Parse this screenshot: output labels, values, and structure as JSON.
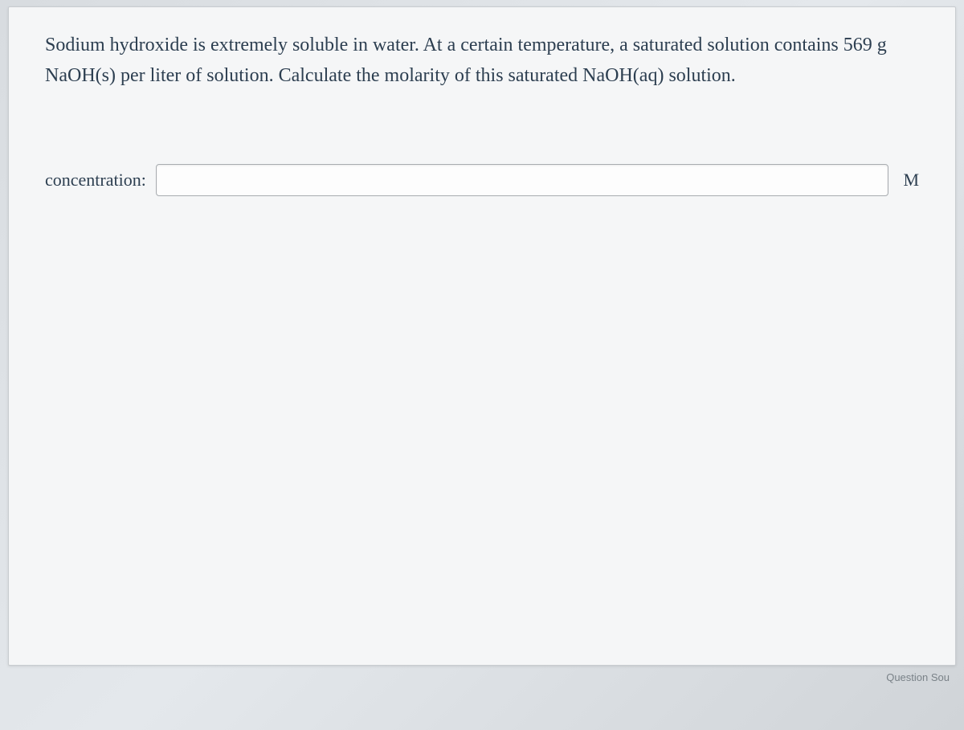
{
  "question": {
    "text": "Sodium hydroxide is extremely soluble in water. At a certain temperature, a saturated solution contains 569 g NaOH(s) per liter of solution. Calculate the molarity of this saturated NaOH(aq) solution."
  },
  "answer": {
    "label": "concentration:",
    "value": "",
    "placeholder": "",
    "unit": "M"
  },
  "footer": {
    "text": "Question Sou"
  },
  "styling": {
    "background_color": "#f5f6f7",
    "text_color": "#2c3e50",
    "border_color": "#c8ccd0",
    "input_border_color": "#a8acb0",
    "question_fontsize": 24,
    "label_fontsize": 22,
    "font_family": "Georgia, serif"
  }
}
